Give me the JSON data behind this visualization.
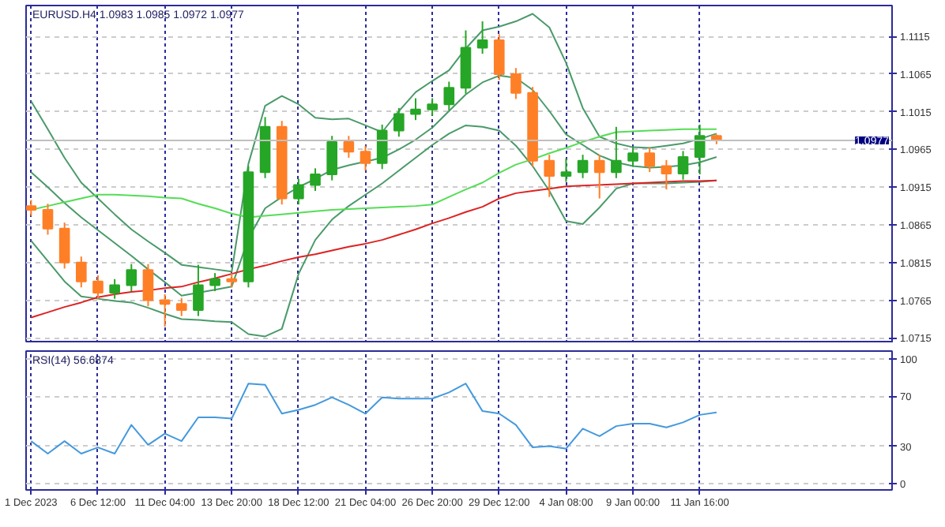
{
  "chart_data": [
    {
      "type": "candlestick",
      "title": "EURUSD.H4 1.0983 1.0985 1.0972 1.0977",
      "categories": [
        null,
        null,
        null,
        null,
        null,
        null,
        null,
        null,
        null,
        null,
        null,
        null,
        null,
        null,
        null,
        null,
        null,
        null,
        null,
        null,
        null,
        null,
        null,
        null,
        null,
        null,
        null,
        null,
        null,
        null,
        null,
        null,
        null,
        null,
        null,
        null,
        null,
        null,
        null,
        null,
        null,
        null,
        null,
        null,
        null,
        null,
        null,
        null,
        null,
        null,
        null,
        null
      ],
      "ohlc": [
        [
          1.089,
          1.0898,
          1.0877,
          1.0885
        ],
        [
          1.0885,
          1.0893,
          1.0852,
          1.086
        ],
        [
          1.086,
          1.0868,
          1.0807,
          1.0815
        ],
        [
          1.0815,
          1.0823,
          1.0782,
          1.079
        ],
        [
          1.079,
          1.0798,
          1.0767,
          1.0775
        ],
        [
          1.0775,
          1.0793,
          1.0767,
          1.0785
        ],
        [
          1.0785,
          1.0813,
          1.0777,
          1.0805
        ],
        [
          1.0805,
          1.0813,
          1.0757,
          1.0765
        ],
        [
          1.0765,
          1.0773,
          1.073,
          1.076
        ],
        [
          1.076,
          1.0768,
          1.0744,
          1.0752
        ],
        [
          1.0752,
          1.0812,
          1.0744,
          1.0785
        ],
        [
          1.0785,
          1.0801,
          1.0777,
          1.0793
        ],
        [
          1.0793,
          1.0801,
          1.0782,
          1.079
        ],
        [
          1.079,
          1.0943,
          1.0782,
          1.0935
        ],
        [
          1.0935,
          1.1008,
          1.0927,
          1.0995
        ],
        [
          1.0995,
          1.1003,
          1.0892,
          1.09
        ],
        [
          1.09,
          1.0926,
          1.0892,
          1.0918
        ],
        [
          1.0918,
          1.094,
          1.091,
          1.0932
        ],
        [
          1.0932,
          1.0983,
          1.0924,
          1.0975
        ],
        [
          1.0975,
          1.0983,
          1.0954,
          1.0962
        ],
        [
          1.0962,
          1.097,
          1.0937,
          1.0947
        ],
        [
          1.0947,
          1.0998,
          1.0939,
          1.099
        ],
        [
          1.099,
          1.102,
          1.0982,
          1.1012
        ],
        [
          1.1012,
          1.1033,
          1.1004,
          1.1018
        ],
        [
          1.1018,
          1.1033,
          1.101,
          1.1025
        ],
        [
          1.1025,
          1.1055,
          1.1017,
          1.1047
        ],
        [
          1.1047,
          1.1123,
          1.1039,
          1.11
        ],
        [
          1.11,
          1.1135,
          1.1092,
          1.111
        ],
        [
          1.111,
          1.1118,
          1.1057,
          1.1065
        ],
        [
          1.1065,
          1.1073,
          1.1032,
          1.104
        ],
        [
          1.104,
          1.1048,
          1.0942,
          1.095
        ],
        [
          1.095,
          1.0958,
          1.0902,
          1.093
        ],
        [
          1.093,
          1.0953,
          1.0922,
          1.0935
        ],
        [
          1.0935,
          1.0958,
          1.0927,
          1.095
        ],
        [
          1.095,
          1.0958,
          1.09,
          1.0935
        ],
        [
          1.0935,
          1.0995,
          1.0927,
          1.095
        ],
        [
          1.095,
          1.0968,
          1.0942,
          1.096
        ],
        [
          1.096,
          1.0968,
          1.0935,
          1.0943
        ],
        [
          1.0943,
          1.0951,
          1.0912,
          1.0933
        ],
        [
          1.0933,
          1.0963,
          1.0925,
          1.0955
        ],
        [
          1.0955,
          1.0998,
          1.0932,
          1.0983
        ],
        [
          1.0983,
          1.0985,
          1.0972,
          1.0977
        ],
        null,
        null,
        null,
        null,
        null,
        null,
        null,
        null,
        null,
        null
      ],
      "colors": [
        "#ff7f27",
        "#ff7f27",
        "#ff7f27",
        "#ff7f27",
        "#ff7f27",
        "#26a626",
        "#26a626",
        "#ff7f27",
        "#ff7f27",
        "#ff7f27",
        "#26a626",
        "#26a626",
        "#ff7f27",
        "#26a626",
        "#26a626",
        "#ff7f27",
        "#26a626",
        "#26a626",
        "#26a626",
        "#ff7f27",
        "#ff7f27",
        "#26a626",
        "#26a626",
        "#26a626",
        "#26a626",
        "#26a626",
        "#26a626",
        "#26a626",
        "#ff7f27",
        "#ff7f27",
        "#ff7f27",
        "#ff7f27",
        "#26a626",
        "#26a626",
        "#ff7f27",
        "#26a626",
        "#26a626",
        "#ff7f27",
        "#ff7f27",
        "#26a626",
        "#26a626",
        "#ff7f27",
        null,
        null,
        null,
        null,
        null,
        null,
        null,
        null,
        null,
        null
      ],
      "series": [
        {
          "type": "line",
          "color": "#4a9a6a",
          "values": [
            1.1029,
            1.0992,
            1.0954,
            1.0921,
            1.09,
            1.0879,
            1.0859,
            1.0843,
            1.0828,
            1.0812,
            1.0809,
            1.0806,
            1.0803,
            1.0946,
            1.1023,
            1.1036,
            1.1025,
            1.1007,
            1.1005,
            1.1006,
            1.0997,
            1.0988,
            1.1016,
            1.1041,
            1.1056,
            1.107,
            1.1099,
            1.1123,
            1.1128,
            1.1135,
            1.1145,
            1.1127,
            1.108,
            1.102,
            1.0982,
            1.0973,
            1.0968,
            1.0967,
            1.097,
            1.0973,
            1.0979,
            1.0986,
            null,
            null,
            null,
            null,
            null,
            null,
            null,
            null,
            null,
            null
          ]
        },
        {
          "type": "line",
          "color": "#4a9a6a",
          "values": [
            1.0935,
            1.0915,
            1.0894,
            1.0875,
            1.0858,
            1.0841,
            1.0824,
            1.0806,
            1.0789,
            1.0771,
            1.0775,
            1.0779,
            1.0783,
            1.0847,
            1.0887,
            1.0902,
            1.0915,
            1.0926,
            1.0938,
            1.0944,
            1.0949,
            1.0954,
            1.0965,
            1.0978,
            1.0994,
            1.1016,
            1.1038,
            1.1054,
            1.1063,
            1.106,
            1.1044,
            1.1016,
            1.0985,
            1.0971,
            1.0957,
            1.0948,
            1.0943,
            1.0941,
            1.0942,
            1.0944,
            1.0948,
            1.0955,
            null,
            null,
            null,
            null,
            null,
            null,
            null,
            null,
            null,
            null
          ]
        },
        {
          "type": "line",
          "color": "#4a9a6a",
          "values": [
            1.0844,
            1.0817,
            1.079,
            1.077,
            1.0767,
            1.0764,
            1.0762,
            1.0755,
            1.0747,
            1.074,
            1.0739,
            1.0737,
            1.0736,
            1.072,
            1.0717,
            1.0727,
            1.08,
            1.0845,
            1.0872,
            1.089,
            1.0905,
            1.092,
            1.0937,
            1.0954,
            1.0971,
            1.0986,
            1.0997,
            1.0995,
            1.099,
            1.097,
            1.0943,
            1.091,
            1.087,
            1.0866,
            1.0888,
            1.0913,
            1.092,
            1.092,
            1.092,
            1.0921,
            1.0922,
            1.0924,
            null,
            null,
            null,
            null,
            null,
            null,
            null,
            null,
            null,
            null
          ]
        },
        {
          "type": "line",
          "color": "#55dd55",
          "values": [
            1.0885,
            1.089,
            1.0895,
            1.09,
            1.0905,
            1.0905,
            1.0904,
            1.0903,
            1.0901,
            1.09,
            1.0893,
            1.0887,
            1.088,
            1.0875,
            1.0877,
            1.0879,
            1.0881,
            1.0883,
            1.0885,
            1.0886,
            1.0887,
            1.0888,
            1.0889,
            1.089,
            1.0892,
            1.0902,
            1.0912,
            1.0921,
            1.0934,
            1.0945,
            1.0952,
            1.096,
            1.0967,
            1.0975,
            1.0982,
            1.0988,
            1.0989,
            1.099,
            1.0991,
            1.0992,
            1.0992,
            1.0992,
            null,
            null,
            null,
            null,
            null,
            null,
            null,
            null,
            null,
            null
          ]
        },
        {
          "type": "line",
          "color": "#dd2222",
          "values": [
            1.0742,
            1.0749,
            1.0756,
            1.0762,
            1.0769,
            1.0773,
            1.0776,
            1.0778,
            1.0781,
            1.0783,
            1.0789,
            1.0794,
            1.08,
            1.0806,
            1.0811,
            1.0817,
            1.0822,
            1.0826,
            1.0831,
            1.0836,
            1.084,
            1.0845,
            1.0852,
            1.0859,
            1.0867,
            1.0874,
            1.0882,
            1.0889,
            1.09,
            1.0907,
            1.091,
            1.0913,
            1.0916,
            1.0917,
            1.0918,
            1.0919,
            1.092,
            1.0921,
            1.0922,
            1.0923,
            1.0923,
            1.0924,
            null,
            null,
            null,
            null,
            null,
            null,
            null,
            null,
            null,
            null
          ]
        }
      ],
      "ylim": [
        1.0708,
        1.1156
      ],
      "yticks": [
        1.0715,
        1.0765,
        1.0815,
        1.0865,
        1.0915,
        1.0965,
        1.1015,
        1.1065,
        1.1115
      ],
      "ref_lines": [
        {
          "axis": "y",
          "value": 1.0977,
          "label": "1.0977",
          "color": "#c0c0c0"
        }
      ],
      "grid": true,
      "tick_labels": "y"
    },
    {
      "type": "line",
      "title": "RSI(14) 56.6874",
      "categories": [
        "1 Dec 2023",
        null,
        null,
        null,
        "6 Dec 12:00",
        null,
        null,
        null,
        "11 Dec 04:00",
        null,
        null,
        null,
        "13 Dec 20:00",
        null,
        null,
        null,
        "18 Dec 12:00",
        null,
        null,
        null,
        "21 Dec 04:00",
        null,
        null,
        null,
        "26 Dec 20:00",
        null,
        null,
        null,
        "29 Dec 12:00",
        null,
        null,
        null,
        "4 Jan 08:00",
        null,
        null,
        null,
        "9 Jan 00:00",
        null,
        null,
        null,
        "11 Jan 16:00",
        null,
        null,
        null,
        null,
        null,
        null,
        null,
        null,
        null,
        null,
        null
      ],
      "series": [
        {
          "color": "#4499dd",
          "values": [
            34,
            24,
            34,
            24,
            29,
            24,
            47,
            31,
            40,
            34,
            53,
            53,
            52,
            80,
            79,
            56,
            59,
            63,
            69,
            63,
            56,
            69,
            68,
            68,
            68,
            73,
            80,
            58,
            56,
            47,
            29,
            30,
            28,
            44,
            38,
            46,
            48,
            48,
            45,
            49,
            55,
            57,
            null,
            null,
            null,
            null,
            null,
            null,
            null,
            null,
            null,
            null
          ]
        }
      ],
      "ylim": [
        -5,
        106
      ],
      "yticks": [
        0,
        30,
        70,
        100
      ],
      "grid": true
    }
  ]
}
